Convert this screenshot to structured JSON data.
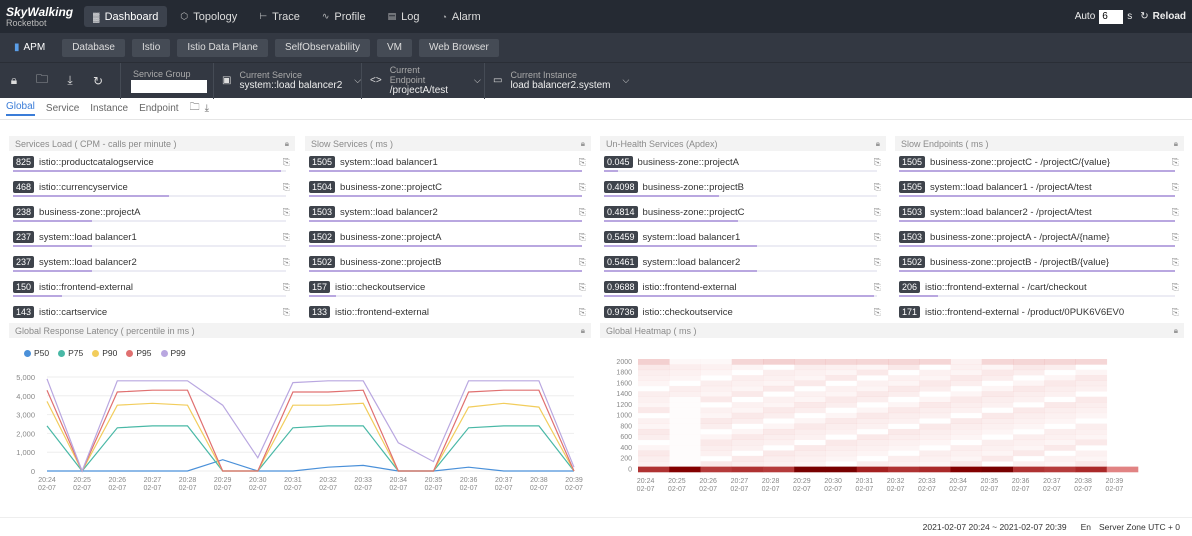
{
  "topnav": {
    "logo_main": "SkyWalking",
    "logo_sub": "Rocketbot",
    "items": [
      {
        "label": "Dashboard",
        "icon": "dashboard-icon"
      },
      {
        "label": "Topology",
        "icon": "topology-icon"
      },
      {
        "label": "Trace",
        "icon": "trace-icon"
      },
      {
        "label": "Profile",
        "icon": "profile-icon"
      },
      {
        "label": "Log",
        "icon": "log-icon"
      },
      {
        "label": "Alarm",
        "icon": "alarm-icon"
      }
    ],
    "auto_label": "Auto",
    "auto_value": "6",
    "seconds": "s",
    "reload": "Reload"
  },
  "layers": [
    "APM",
    "Database",
    "Istio",
    "Istio Data Plane",
    "SelfObservability",
    "VM",
    "Web Browser"
  ],
  "toolbar": {
    "service_group_label": "Service Group",
    "current_service_label": "Current Service",
    "current_service": "system::load balancer2",
    "current_endpoint_label": "Current Endpoint",
    "current_endpoint": "/projectA/test",
    "current_instance_label": "Current Instance",
    "current_instance": "load balancer2.system"
  },
  "tabs": [
    "Global",
    "Service",
    "Instance",
    "Endpoint"
  ],
  "cards": {
    "services_load": {
      "title": "Services Load ( CPM - calls per minute )",
      "rows": [
        {
          "v": "825",
          "n": "istio::productcatalogservice",
          "p": 0.98
        },
        {
          "v": "468",
          "n": "istio::currencyservice",
          "p": 0.57
        },
        {
          "v": "238",
          "n": "business-zone::projectA",
          "p": 0.29
        },
        {
          "v": "237",
          "n": "system::load balancer1",
          "p": 0.29
        },
        {
          "v": "237",
          "n": "system::load balancer2",
          "p": 0.29
        },
        {
          "v": "150",
          "n": "istio::frontend-external",
          "p": 0.18
        },
        {
          "v": "143",
          "n": "istio::cartservice",
          "p": 0.17
        }
      ]
    },
    "slow_services": {
      "title": "Slow Services ( ms )",
      "rows": [
        {
          "v": "1505",
          "n": "system::load balancer1",
          "p": 1
        },
        {
          "v": "1504",
          "n": "business-zone::projectC",
          "p": 1
        },
        {
          "v": "1503",
          "n": "system::load balancer2",
          "p": 1
        },
        {
          "v": "1502",
          "n": "business-zone::projectA",
          "p": 1
        },
        {
          "v": "1502",
          "n": "business-zone::projectB",
          "p": 1
        },
        {
          "v": "157",
          "n": "istio::checkoutservice",
          "p": 0.1
        },
        {
          "v": "133",
          "n": "istio::frontend-external",
          "p": 0.09
        }
      ]
    },
    "unhealth": {
      "title": "Un-Health Services (Apdex)",
      "rows": [
        {
          "v": "0.045",
          "n": "business-zone::projectA",
          "p": 0.05
        },
        {
          "v": "0.4098",
          "n": "business-zone::projectB",
          "p": 0.42
        },
        {
          "v": "0.4814",
          "n": "business-zone::projectC",
          "p": 0.49
        },
        {
          "v": "0.5459",
          "n": "system::load balancer1",
          "p": 0.56
        },
        {
          "v": "0.5461",
          "n": "system::load balancer2",
          "p": 0.56
        },
        {
          "v": "0.9688",
          "n": "istio::frontend-external",
          "p": 0.99
        },
        {
          "v": "0.9736",
          "n": "istio::checkoutservice",
          "p": 0.99
        }
      ]
    },
    "slow_endpoints": {
      "title": "Slow Endpoints ( ms )",
      "rows": [
        {
          "v": "1505",
          "n": "business-zone::projectC - /projectC/{value}",
          "p": 1
        },
        {
          "v": "1505",
          "n": "system::load balancer1 - /projectA/test",
          "p": 1
        },
        {
          "v": "1503",
          "n": "system::load balancer2 - /projectA/test",
          "p": 1
        },
        {
          "v": "1503",
          "n": "business-zone::projectA - /projectA/{name}",
          "p": 1
        },
        {
          "v": "1502",
          "n": "business-zone::projectB - /projectB/{value}",
          "p": 1
        },
        {
          "v": "206",
          "n": "istio::frontend-external - /cart/checkout",
          "p": 0.14
        },
        {
          "v": "171",
          "n": "istio::frontend-external - /product/0PUK6V6EV0",
          "p": 0.11
        }
      ]
    },
    "latency_title": "Global Response Latency ( percentile in ms )",
    "heatmap_title": "Global Heatmap ( ms )"
  },
  "chart_data": [
    {
      "type": "line",
      "title": "Global Response Latency ( percentile in ms )",
      "x": [
        "20:24 02-07",
        "20:25 02-07",
        "20:26 02-07",
        "20:27 02-07",
        "20:28 02-07",
        "20:29 02-07",
        "20:30 02-07",
        "20:31 02-07",
        "20:32 02-07",
        "20:33 02-07",
        "20:34 02-07",
        "20:35 02-07",
        "20:36 02-07",
        "20:37 02-07",
        "20:38 02-07",
        "20:39 02-07"
      ],
      "ylim": [
        0,
        5000
      ],
      "yticks": [
        "0",
        "1,000",
        "2,000",
        "3,000",
        "4,000",
        "5,000"
      ],
      "series": [
        {
          "name": "P50",
          "color": "#4a90d9",
          "values": [
            0,
            0,
            0,
            0,
            0,
            600,
            0,
            0,
            200,
            300,
            0,
            0,
            200,
            0,
            0,
            0
          ]
        },
        {
          "name": "P75",
          "color": "#49b8a6",
          "values": [
            2400,
            0,
            2300,
            2400,
            2400,
            0,
            0,
            2300,
            2400,
            2400,
            0,
            0,
            2300,
            2400,
            2400,
            0
          ]
        },
        {
          "name": "P90",
          "color": "#f2cd5c",
          "values": [
            3700,
            0,
            3500,
            3600,
            3500,
            0,
            0,
            3500,
            3500,
            3600,
            0,
            0,
            3400,
            3600,
            3400,
            0
          ]
        },
        {
          "name": "P95",
          "color": "#e07070",
          "values": [
            4300,
            0,
            4200,
            4300,
            4300,
            0,
            0,
            4200,
            4200,
            4300,
            0,
            0,
            4200,
            4300,
            4300,
            0
          ]
        },
        {
          "name": "P99",
          "color": "#b9a7e0",
          "values": [
            4900,
            0,
            4800,
            4800,
            4800,
            3500,
            700,
            4700,
            4800,
            4800,
            1500,
            500,
            4800,
            4800,
            4800,
            200
          ]
        }
      ]
    },
    {
      "type": "heatmap",
      "title": "Global Heatmap ( ms )",
      "x": [
        "20:24 02-07",
        "20:25 02-07",
        "20:26 02-07",
        "20:27 02-07",
        "20:28 02-07",
        "20:29 02-07",
        "20:30 02-07",
        "20:31 02-07",
        "20:32 02-07",
        "20:33 02-07",
        "20:34 02-07",
        "20:35 02-07",
        "20:36 02-07",
        "20:37 02-07",
        "20:38 02-07",
        "20:39 02-07"
      ],
      "y": [
        "0",
        "100",
        "200",
        "300",
        "400",
        "500",
        "600",
        "700",
        "800",
        "900",
        "1000",
        "1100",
        "1200",
        "1300",
        "1400",
        "1500",
        "1600",
        "1700",
        "1800",
        "1900",
        "2000"
      ],
      "hot_row": [
        0.5,
        0.9,
        0.45,
        0.5,
        0.45,
        1,
        1,
        0.6,
        0.5,
        0.55,
        0.9,
        1,
        0.5,
        0.45,
        0.55,
        0.05
      ],
      "top_row": [
        0.35,
        0.05,
        0.05,
        0.3,
        0.35,
        0.3,
        0.3,
        0.3,
        0.3,
        0.3,
        0.1,
        0.3,
        0.3,
        0.3,
        0.3,
        0
      ]
    }
  ],
  "footer": {
    "range": "2021-02-07 20:24 ~ 2021-02-07 20:39",
    "lang": "En",
    "zone": "Server Zone UTC + 0"
  }
}
